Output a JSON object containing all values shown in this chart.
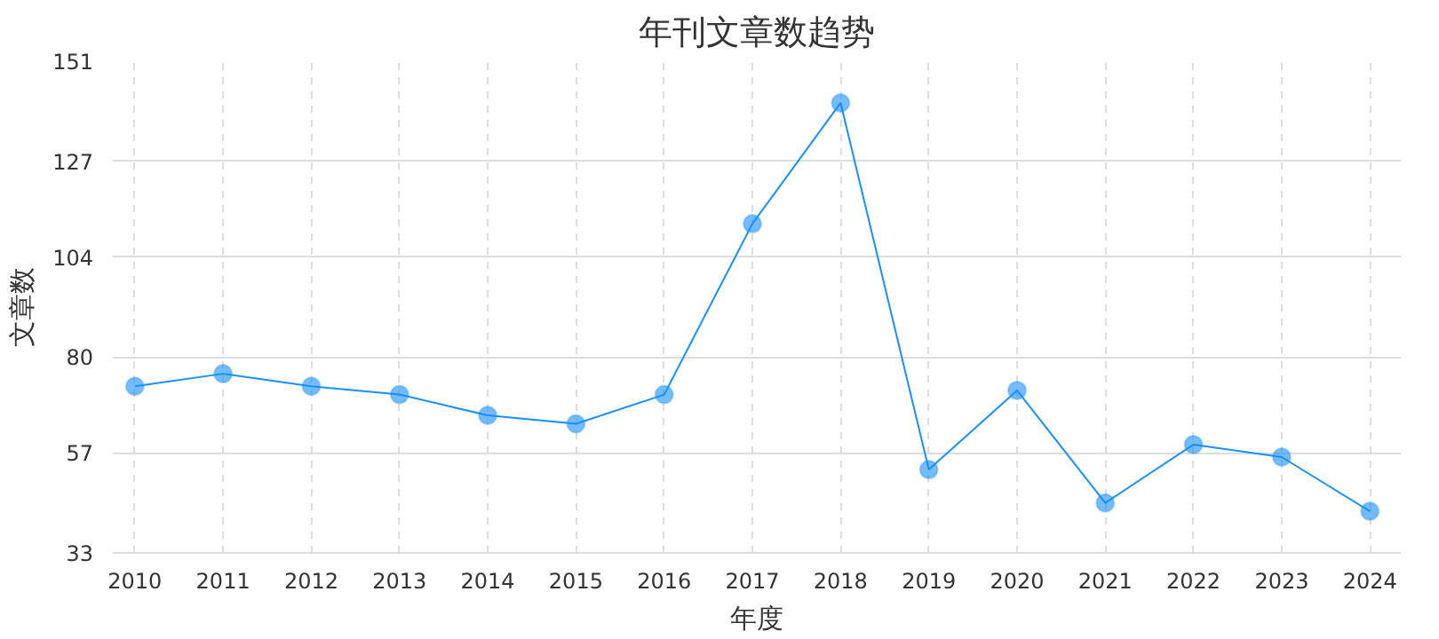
{
  "chart_data": {
    "type": "line",
    "title": "年刊文章数趋势",
    "xlabel": "年度",
    "ylabel": "文章数",
    "categories": [
      "2010",
      "2011",
      "2012",
      "2013",
      "2014",
      "2015",
      "2016",
      "2017",
      "2018",
      "2019",
      "2020",
      "2021",
      "2022",
      "2023",
      "2024"
    ],
    "series": [
      {
        "color": "#1890ff",
        "values": [
          73,
          76,
          73,
          71,
          66,
          64,
          71,
          112,
          141,
          53,
          72,
          45,
          59,
          56,
          43
        ]
      }
    ],
    "ylim": [
      33,
      151
    ],
    "yticks": [
      33,
      57,
      80,
      104,
      127,
      151
    ],
    "grid": true,
    "marker": "circle",
    "line_style": "solid"
  }
}
